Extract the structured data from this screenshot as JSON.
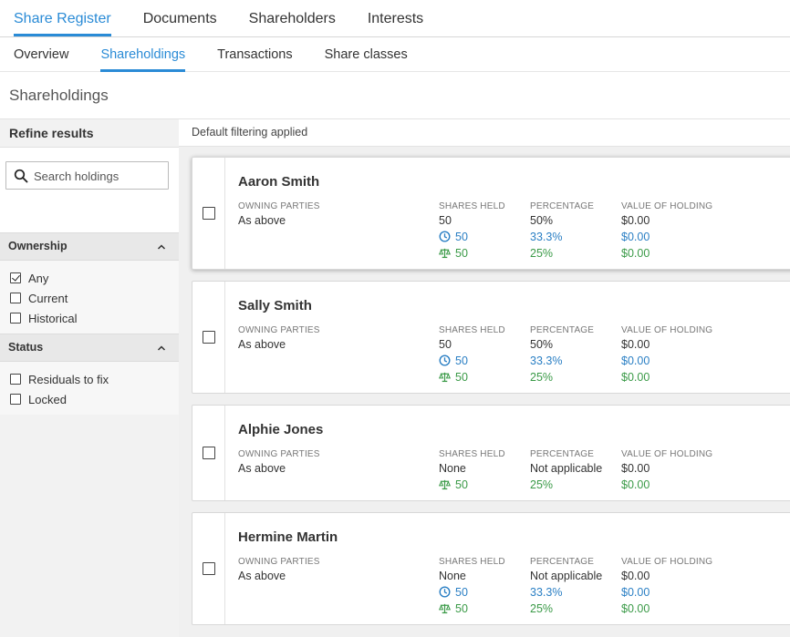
{
  "top_nav": [
    "Share Register",
    "Documents",
    "Shareholders",
    "Interests"
  ],
  "sub_nav": [
    "Overview",
    "Shareholdings",
    "Transactions",
    "Share classes"
  ],
  "page_title": "Shareholdings",
  "sidebar": {
    "header": "Refine results",
    "search_placeholder": "Search holdings",
    "sections": [
      {
        "title": "Ownership",
        "options": [
          {
            "label": "Any",
            "checked": true
          },
          {
            "label": "Current",
            "checked": false
          },
          {
            "label": "Historical",
            "checked": false
          }
        ]
      },
      {
        "title": "Status",
        "options": [
          {
            "label": "Residuals to fix",
            "checked": false
          },
          {
            "label": "Locked",
            "checked": false
          }
        ]
      }
    ]
  },
  "filter_text": "Default filtering applied",
  "labels": {
    "owning_parties": "OWNING PARTIES",
    "shares_held": "SHARES HELD",
    "percentage": "PERCENTAGE",
    "value": "VALUE OF HOLDING"
  },
  "holdings": [
    {
      "name": "Aaron Smith",
      "owning": "As above",
      "shares": "50",
      "pct": "50%",
      "value": "$0.00",
      "clock": {
        "shares": "50",
        "pct": "33.3%",
        "value": "$0.00"
      },
      "scale": {
        "shares": "50",
        "pct": "25%",
        "value": "$0.00"
      }
    },
    {
      "name": "Sally Smith",
      "owning": "As above",
      "shares": "50",
      "pct": "50%",
      "value": "$0.00",
      "clock": {
        "shares": "50",
        "pct": "33.3%",
        "value": "$0.00"
      },
      "scale": {
        "shares": "50",
        "pct": "25%",
        "value": "$0.00"
      }
    },
    {
      "name": "Alphie Jones",
      "owning": "As above",
      "shares": "None",
      "pct": "Not applicable",
      "value": "$0.00",
      "clock": null,
      "scale": {
        "shares": "50",
        "pct": "25%",
        "value": "$0.00"
      }
    },
    {
      "name": "Hermine Martin",
      "owning": "As above",
      "shares": "None",
      "pct": "Not applicable",
      "value": "$0.00",
      "clock": {
        "shares": "50",
        "pct": "33.3%",
        "value": "$0.00"
      },
      "scale": {
        "shares": "50",
        "pct": "25%",
        "value": "$0.00"
      }
    }
  ],
  "colors": {
    "accent": "#2a8bd6",
    "clock": "#2a7fc4",
    "scale": "#3a9a47"
  }
}
